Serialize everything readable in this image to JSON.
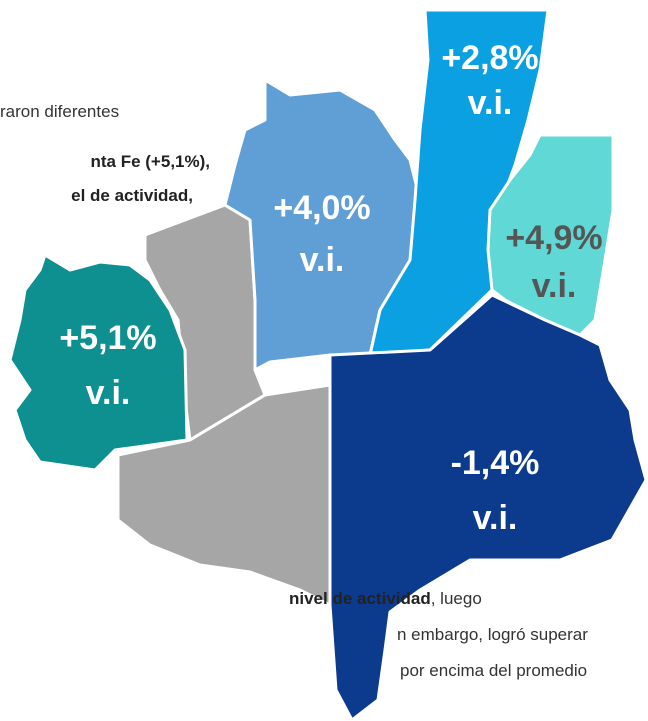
{
  "text": {
    "top_lines": [
      "raron  diferentes",
      "nta Fe (+5,1%),",
      "el de actividad,"
    ],
    "bottom_lines": [
      [
        "nivel de actividad",
        ", luego"
      ],
      [
        "n embargo, logró superar"
      ],
      [
        "por encima del promedio"
      ]
    ]
  },
  "regions": [
    {
      "color": "#a6a6a6",
      "label": null,
      "sub": null
    },
    {
      "color": "#a6a6a6",
      "label": null,
      "sub": null
    },
    {
      "color": "#0e9090",
      "label": "+5,1%",
      "sub": "v.i.",
      "text_color": "#ffffff"
    },
    {
      "color": "#5f9fd6",
      "label": "+4,0%",
      "sub": "v.i.",
      "text_color": "#ffffff"
    },
    {
      "color": "#0aa0e2",
      "label": "+2,8%",
      "sub": "v.i.",
      "text_color": "#ffffff"
    },
    {
      "color": "#5fd8d6",
      "label": "+4,9%",
      "sub": "v.i.",
      "text_color": "#555555"
    },
    {
      "color": "#0c3a8c",
      "label": "-1,4%",
      "sub": "v.i.",
      "text_color": "#ffffff"
    }
  ]
}
